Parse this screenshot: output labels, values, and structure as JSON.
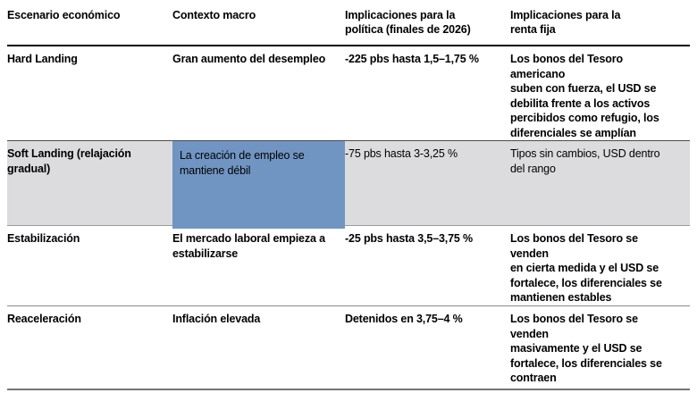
{
  "table": {
    "columns": [
      {
        "label": "Escenario económico"
      },
      {
        "label": "Contexto macro"
      },
      {
        "label": "Implicaciones para la\npolítica (finales de 2026)"
      },
      {
        "label": "Implicaciones para la\nrenta fija"
      }
    ],
    "rows": [
      {
        "scenario": "Hard Landing",
        "macro": "Gran aumento del desempleo",
        "policy": "-225 pbs hasta 1,5–1,75 %",
        "fixed_income": "Los bonos del Tesoro americano\nsuben con fuerza, el USD se\ndebilita frente a los activos\npercibidos como refugio, los\ndiferenciales se amplían",
        "highlighted": false
      },
      {
        "scenario": "Soft Landing (relajación\ngradual)",
        "macro": "La creación de empleo se\nmantiene débil",
        "policy": "-75 pbs hasta 3-3,25 %",
        "fixed_income": "Tipos sin cambios, USD dentro\ndel rango",
        "highlighted": true
      },
      {
        "scenario": "Estabilización",
        "macro": "El mercado laboral empieza a\nestabilizarse",
        "policy": "-25 pbs hasta 3,5–3,75 %",
        "fixed_income": "Los bonos del Tesoro se venden\nen cierta medida y el USD se\nfortalece, los diferenciales se\nmantienen estables",
        "highlighted": false
      },
      {
        "scenario": "Reaceleración",
        "macro": "Inflación elevada",
        "policy": "Detenidos en 3,75–4 %",
        "fixed_income": "Los bonos del Tesoro se venden\nmasivamente y el USD se\nfortalece, los diferenciales se\ncontraen",
        "highlighted": false
      }
    ],
    "colors": {
      "highlight_row_bg": "#dcdcdf",
      "highlight_cell_bg": "#7195c3",
      "header_rule": "#000000",
      "row_rule": "#8a8a8a",
      "text": "#000000"
    }
  }
}
